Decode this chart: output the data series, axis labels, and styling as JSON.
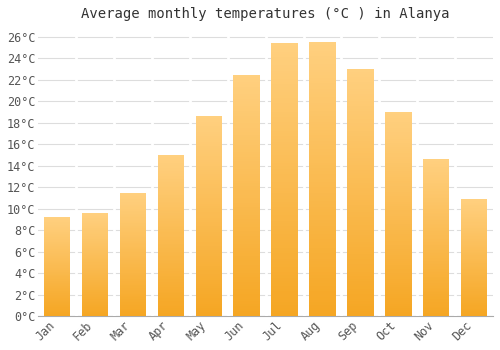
{
  "title": "Average monthly temperatures (°C ) in Alanya",
  "months": [
    "Jan",
    "Feb",
    "Mar",
    "Apr",
    "May",
    "Jun",
    "Jul",
    "Aug",
    "Sep",
    "Oct",
    "Nov",
    "Dec"
  ],
  "temperatures": [
    9.2,
    9.6,
    11.5,
    15.0,
    18.6,
    22.5,
    25.4,
    25.5,
    23.0,
    19.0,
    14.6,
    10.9
  ],
  "bar_color_bottom": "#F5A623",
  "bar_color_top": "#FFD080",
  "bar_edge_color": "#E8E8E8",
  "background_color": "#FFFFFF",
  "plot_bg_color": "#FFFFFF",
  "grid_color": "#DDDDDD",
  "ylim": [
    0,
    27
  ],
  "ytick_step": 2,
  "title_fontsize": 10,
  "tick_fontsize": 8.5,
  "font_family": "monospace"
}
